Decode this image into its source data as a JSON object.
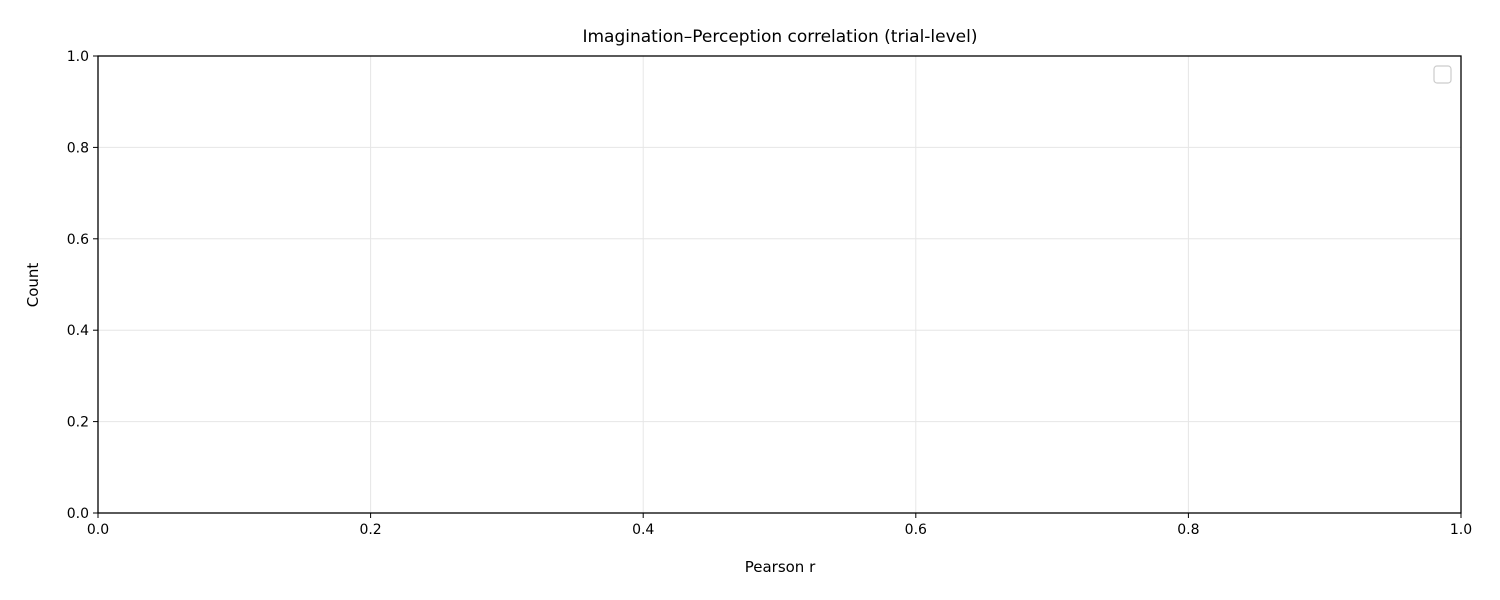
{
  "chart_data": {
    "type": "bar",
    "title": "Imagination–Perception correlation (trial-level)",
    "xlabel": "Pearson r",
    "ylabel": "Count",
    "xlim": [
      0,
      1
    ],
    "ylim": [
      0,
      1
    ],
    "x_ticks": [
      0.0,
      0.2,
      0.4,
      0.6,
      0.8,
      1.0
    ],
    "x_tick_labels": [
      "0.0",
      "0.2",
      "0.4",
      "0.6",
      "0.8",
      "1.0"
    ],
    "y_ticks": [
      0.0,
      0.2,
      0.4,
      0.6,
      0.8,
      1.0
    ],
    "y_tick_labels": [
      "0.0",
      "0.2",
      "0.4",
      "0.6",
      "0.8",
      "1.0"
    ],
    "grid": true,
    "legend": {
      "placement": "top-right",
      "entries": []
    },
    "series": []
  },
  "colors": {
    "axis": "#000000",
    "grid": "#e6e6e6",
    "legend_border": "#cccccc",
    "background": "#ffffff"
  }
}
